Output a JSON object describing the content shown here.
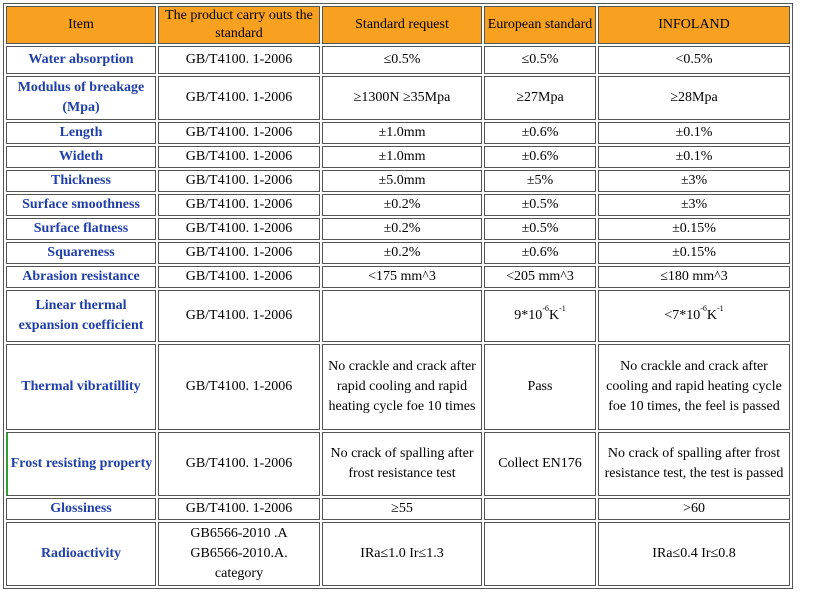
{
  "headers": [
    "Item",
    "The product carry outs the standard",
    "Standard request",
    "European standard",
    "INFOLAND"
  ],
  "rows": [
    {
      "item": "Water absorption",
      "standard": "GB/T4100. 1-2006",
      "request": "≤0.5%",
      "european": "≤0.5%",
      "infoland": "<0.5%"
    },
    {
      "item": "Modulus of breakage (Mpa)",
      "standard": "GB/T4100. 1-2006",
      "request": "≥1300N ≥35Mpa",
      "european": "≥27Mpa",
      "infoland": "≥28Mpa"
    },
    {
      "item": "Length",
      "standard": "GB/T4100. 1-2006",
      "request": "±1.0mm",
      "european": "±0.6%",
      "infoland": "±0.1%"
    },
    {
      "item": "Wideth",
      "standard": "GB/T4100. 1-2006",
      "request": "±1.0mm",
      "european": "±0.6%",
      "infoland": "±0.1%"
    },
    {
      "item": "Thickness",
      "standard": "GB/T4100. 1-2006",
      "request": "±5.0mm",
      "european": "±5%",
      "infoland": "±3%"
    },
    {
      "item": "Surface smoothness",
      "standard": "GB/T4100. 1-2006",
      "request": "±0.2%",
      "european": "±0.5%",
      "infoland": "±3%"
    },
    {
      "item": "Surface flatness",
      "standard": "GB/T4100. 1-2006",
      "request": "±0.2%",
      "european": "±0.5%",
      "infoland": "±0.15%"
    },
    {
      "item": "Squareness",
      "standard": "GB/T4100. 1-2006",
      "request": "±0.2%",
      "european": "±0.6%",
      "infoland": "±0.15%"
    },
    {
      "item": "Abrasion resistance",
      "standard": "GB/T4100. 1-2006",
      "request": "<175 mm^3",
      "european": "<205 mm^3",
      "infoland": "≤180 mm^3"
    },
    {
      "item": "Linear thermal expansion coefficient",
      "standard": "GB/T4100. 1-2006",
      "request": "",
      "european_base": "9*10",
      "european_exp1": "-6",
      "european_k": "K",
      "european_exp2": "-1",
      "infoland_base": "<7*10",
      "infoland_exp1": "-6",
      "infoland_k": "K",
      "infoland_exp2": "-1"
    },
    {
      "item": "Thermal vibratillity",
      "standard": "GB/T4100. 1-2006",
      "request": "No crackle and crack after rapid cooling and rapid heating cycle foe 10 times",
      "european": "Pass",
      "infoland": "No crackle and crack after cooling and rapid heating cycle foe 10 times, the feel is passed"
    },
    {
      "item": "Frost resisting property",
      "standard": "GB/T4100. 1-2006",
      "request": "No crack of spalling after frost resistance test",
      "european": "Collect EN176",
      "infoland": "No crack of spalling after frost resistance test, the test is passed"
    },
    {
      "item": "Glossiness",
      "standard": "GB/T4100. 1-2006",
      "request": "≥55",
      "european": "",
      "infoland": ">60"
    },
    {
      "item": "Radioactivity",
      "standard_lines": [
        "GB6566-2010 .A",
        "GB6566-2010.A.",
        "category"
      ],
      "request": "IRa≤1.0 Ir≤1.3",
      "european": "",
      "infoland": "IRa≤0.4 Ir≤0.8"
    }
  ],
  "colors": {
    "header_bg": "#f8a020",
    "item_text": "#1f3fa8",
    "border": "#555555"
  }
}
